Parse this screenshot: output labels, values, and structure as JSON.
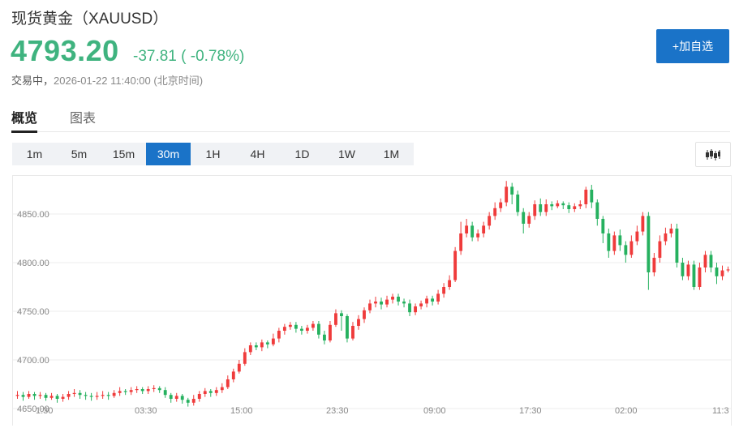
{
  "header": {
    "title": "现货黄金（XAUUSD）",
    "price": "4793.20",
    "change": "-37.81 ( -0.78%)",
    "status_label": "交易中，",
    "timestamp": "2026-01-22 11:40:00",
    "timezone": "(北京时间)",
    "add_watchlist_label": "+加自选"
  },
  "tabs": [
    {
      "label": "概览",
      "active": true
    },
    {
      "label": "图表",
      "active": false
    }
  ],
  "periods": [
    {
      "label": "1m",
      "active": false
    },
    {
      "label": "5m",
      "active": false
    },
    {
      "label": "15m",
      "active": false
    },
    {
      "label": "30m",
      "active": true
    },
    {
      "label": "1H",
      "active": false
    },
    {
      "label": "4H",
      "active": false
    },
    {
      "label": "1D",
      "active": false
    },
    {
      "label": "1W",
      "active": false
    },
    {
      "label": "1M",
      "active": false
    }
  ],
  "chart_type_icon": "candlestick-icon",
  "colors": {
    "up": "#ef3b3b",
    "down": "#26b15f",
    "accent": "#1a73c8",
    "price": "#3fb37f"
  },
  "chart_data": {
    "type": "candlestick",
    "interval": "30m",
    "y_ticks": [
      "4650.00",
      "4700.00",
      "4750.00",
      "4800.00",
      "4850.00"
    ],
    "x_ticks": [
      "1:30",
      "03:30",
      "15:00",
      "23:30",
      "09:00",
      "17:30",
      "02:00",
      "11:3"
    ],
    "ylim": [
      4648,
      4885
    ],
    "grid": true,
    "values": [
      [
        4663,
        4664,
        4660,
        4668
      ],
      [
        4664,
        4662,
        4658,
        4667
      ],
      [
        4662,
        4665,
        4660,
        4668
      ],
      [
        4665,
        4663,
        4659,
        4667
      ],
      [
        4663,
        4664,
        4660,
        4667
      ],
      [
        4664,
        4661,
        4658,
        4666
      ],
      [
        4661,
        4663,
        4659,
        4666
      ],
      [
        4663,
        4660,
        4656,
        4665
      ],
      [
        4660,
        4662,
        4657,
        4665
      ],
      [
        4662,
        4665,
        4659,
        4668
      ],
      [
        4665,
        4666,
        4662,
        4670
      ],
      [
        4666,
        4664,
        4660,
        4669
      ],
      [
        4664,
        4663,
        4659,
        4667
      ],
      [
        4663,
        4662,
        4658,
        4666
      ],
      [
        4662,
        4663,
        4659,
        4667
      ],
      [
        4663,
        4664,
        4660,
        4668
      ],
      [
        4664,
        4663,
        4659,
        4667
      ],
      [
        4663,
        4666,
        4661,
        4669
      ],
      [
        4666,
        4668,
        4663,
        4672
      ],
      [
        4668,
        4667,
        4664,
        4670
      ],
      [
        4667,
        4669,
        4664,
        4672
      ],
      [
        4669,
        4670,
        4666,
        4673
      ],
      [
        4670,
        4668,
        4665,
        4672
      ],
      [
        4668,
        4670,
        4665,
        4673
      ],
      [
        4670,
        4671,
        4667,
        4674
      ],
      [
        4671,
        4669,
        4666,
        4673
      ],
      [
        4669,
        4664,
        4661,
        4672
      ],
      [
        4664,
        4660,
        4656,
        4666
      ],
      [
        4660,
        4663,
        4657,
        4666
      ],
      [
        4663,
        4659,
        4655,
        4665
      ],
      [
        4659,
        4656,
        4652,
        4661
      ],
      [
        4656,
        4660,
        4653,
        4664
      ],
      [
        4660,
        4665,
        4657,
        4668
      ],
      [
        4665,
        4668,
        4662,
        4671
      ],
      [
        4668,
        4666,
        4662,
        4670
      ],
      [
        4666,
        4669,
        4663,
        4672
      ],
      [
        4669,
        4672,
        4666,
        4676
      ],
      [
        4672,
        4680,
        4670,
        4684
      ],
      [
        4680,
        4688,
        4677,
        4691
      ],
      [
        4688,
        4696,
        4686,
        4700
      ],
      [
        4696,
        4708,
        4694,
        4712
      ],
      [
        4708,
        4715,
        4705,
        4718
      ],
      [
        4715,
        4713,
        4710,
        4718
      ],
      [
        4713,
        4718,
        4709,
        4721
      ],
      [
        4718,
        4716,
        4712,
        4720
      ],
      [
        4716,
        4722,
        4714,
        4727
      ],
      [
        4722,
        4730,
        4718,
        4733
      ],
      [
        4730,
        4734,
        4726,
        4737
      ],
      [
        4734,
        4736,
        4731,
        4739
      ],
      [
        4736,
        4732,
        4728,
        4739
      ],
      [
        4732,
        4730,
        4726,
        4735
      ],
      [
        4730,
        4733,
        4727,
        4736
      ],
      [
        4733,
        4737,
        4730,
        4740
      ],
      [
        4737,
        4726,
        4722,
        4740
      ],
      [
        4726,
        4720,
        4716,
        4730
      ],
      [
        4720,
        4736,
        4718,
        4740
      ],
      [
        4736,
        4748,
        4734,
        4752
      ],
      [
        4748,
        4745,
        4730,
        4751
      ],
      [
        4745,
        4722,
        4718,
        4747
      ],
      [
        4722,
        4735,
        4720,
        4739
      ],
      [
        4735,
        4742,
        4731,
        4746
      ],
      [
        4742,
        4751,
        4738,
        4754
      ],
      [
        4751,
        4758,
        4748,
        4762
      ],
      [
        4758,
        4760,
        4754,
        4765
      ],
      [
        4760,
        4757,
        4752,
        4764
      ],
      [
        4757,
        4762,
        4754,
        4766
      ],
      [
        4762,
        4765,
        4758,
        4768
      ],
      [
        4765,
        4760,
        4756,
        4768
      ],
      [
        4760,
        4758,
        4754,
        4763
      ],
      [
        4758,
        4749,
        4745,
        4762
      ],
      [
        4749,
        4755,
        4746,
        4758
      ],
      [
        4755,
        4758,
        4752,
        4761
      ],
      [
        4758,
        4763,
        4754,
        4766
      ],
      [
        4763,
        4760,
        4756,
        4766
      ],
      [
        4760,
        4768,
        4757,
        4772
      ],
      [
        4768,
        4775,
        4764,
        4779
      ],
      [
        4775,
        4782,
        4772,
        4787
      ],
      [
        4782,
        4812,
        4780,
        4816
      ],
      [
        4812,
        4830,
        4808,
        4842
      ],
      [
        4830,
        4838,
        4826,
        4845
      ],
      [
        4838,
        4826,
        4822,
        4842
      ],
      [
        4826,
        4830,
        4822,
        4834
      ],
      [
        4830,
        4838,
        4826,
        4842
      ],
      [
        4838,
        4848,
        4834,
        4852
      ],
      [
        4848,
        4856,
        4844,
        4862
      ],
      [
        4856,
        4862,
        4852,
        4866
      ],
      [
        4862,
        4878,
        4858,
        4884
      ],
      [
        4878,
        4870,
        4860,
        4882
      ],
      [
        4870,
        4852,
        4848,
        4874
      ],
      [
        4852,
        4840,
        4830,
        4856
      ],
      [
        4840,
        4848,
        4836,
        4852
      ],
      [
        4848,
        4860,
        4844,
        4864
      ],
      [
        4860,
        4852,
        4848,
        4866
      ],
      [
        4852,
        4860,
        4848,
        4865
      ],
      [
        4860,
        4858,
        4854,
        4863
      ],
      [
        4858,
        4861,
        4856,
        4864
      ],
      [
        4861,
        4859,
        4855,
        4863
      ],
      [
        4859,
        4855,
        4851,
        4862
      ],
      [
        4855,
        4858,
        4852,
        4861
      ],
      [
        4858,
        4860,
        4855,
        4864
      ],
      [
        4860,
        4875,
        4856,
        4878
      ],
      [
        4875,
        4862,
        4856,
        4880
      ],
      [
        4862,
        4845,
        4838,
        4865
      ],
      [
        4845,
        4830,
        4820,
        4848
      ],
      [
        4830,
        4812,
        4805,
        4835
      ],
      [
        4812,
        4828,
        4808,
        4832
      ],
      [
        4828,
        4818,
        4812,
        4834
      ],
      [
        4818,
        4808,
        4800,
        4822
      ],
      [
        4808,
        4822,
        4805,
        4828
      ],
      [
        4822,
        4832,
        4818,
        4838
      ],
      [
        4832,
        4848,
        4828,
        4852
      ],
      [
        4848,
        4790,
        4772,
        4852
      ],
      [
        4790,
        4805,
        4786,
        4810
      ],
      [
        4805,
        4822,
        4800,
        4828
      ],
      [
        4822,
        4830,
        4818,
        4836
      ],
      [
        4830,
        4835,
        4826,
        4840
      ],
      [
        4835,
        4800,
        4795,
        4840
      ],
      [
        4800,
        4786,
        4782,
        4805
      ],
      [
        4786,
        4798,
        4782,
        4802
      ],
      [
        4798,
        4775,
        4772,
        4802
      ],
      [
        4775,
        4795,
        4772,
        4800
      ],
      [
        4795,
        4808,
        4790,
        4812
      ],
      [
        4808,
        4795,
        4790,
        4812
      ],
      [
        4795,
        4786,
        4778,
        4800
      ],
      [
        4786,
        4792,
        4782,
        4797
      ],
      [
        4792,
        4793,
        4790,
        4796
      ]
    ]
  }
}
